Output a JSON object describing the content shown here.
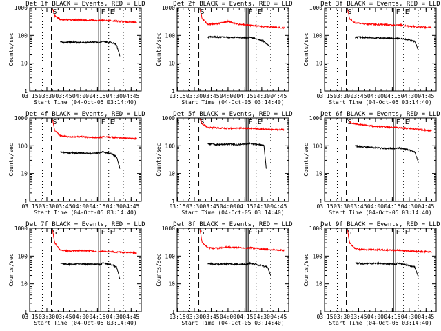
{
  "figure": {
    "xlabel": "Start Time (04-Oct-05 03:14:40)",
    "ylabel": "Counts/sec",
    "x_ticks": [
      "03:15",
      "03:30",
      "03:45",
      "04:00",
      "04:15",
      "04:30",
      "04:45"
    ],
    "y_ticks": [
      "1",
      "10",
      "100",
      "1000"
    ],
    "marker_labels": [
      "S",
      "F",
      "E"
    ]
  },
  "chart_data": [
    {
      "type": "line",
      "title": "Det 1f BLACK = Events, RED = LLD",
      "xlabel": "Start Time (04-Oct-05 03:14:40)",
      "ylabel": "Counts/sec",
      "y_scale": "log",
      "ylim": [
        1,
        1000
      ],
      "xlim": [
        "03:14:40",
        "04:54:00"
      ],
      "x_ticks": [
        "03:15",
        "03:30",
        "03:45",
        "04:00",
        "04:15",
        "04:30",
        "04:45"
      ],
      "vertical_markers": [
        {
          "style": "dotted",
          "time": "03:26"
        },
        {
          "style": "dashed",
          "time": "03:34",
          "label": "S"
        },
        {
          "style": "solid-double",
          "time": "04:17",
          "label": "F"
        },
        {
          "style": "dotted",
          "time": "04:25",
          "label": "E"
        },
        {
          "style": "dotted",
          "time": "04:38"
        }
      ],
      "series": [
        {
          "color": "#ff0000",
          "time": [
            "03:35",
            "03:37",
            "03:42",
            "03:50",
            "04:00",
            "04:10",
            "04:17",
            "04:20",
            "04:30",
            "04:40",
            "04:50"
          ],
          "values": [
            900,
            500,
            370,
            360,
            355,
            350,
            345,
            350,
            330,
            310,
            300
          ]
        },
        {
          "color": "#000000",
          "time": [
            "03:42",
            "03:45",
            "03:50",
            "04:00",
            "04:10",
            "04:17",
            "04:20",
            "04:28",
            "04:32",
            "04:35"
          ],
          "values": [
            60,
            55,
            58,
            55,
            57,
            55,
            60,
            55,
            45,
            18
          ]
        }
      ]
    },
    {
      "type": "line",
      "title": "Det 2f BLACK = Events, RED = LLD",
      "xlabel": "Start Time (04-Oct-05 03:14:40)",
      "ylabel": "Counts/sec",
      "y_scale": "log",
      "ylim": [
        1,
        1000
      ],
      "xlim": [
        "03:14:40",
        "04:54:00"
      ],
      "x_ticks": [
        "03:15",
        "03:30",
        "03:45",
        "04:00",
        "04:15",
        "04:30",
        "04:45"
      ],
      "vertical_markers": [
        {
          "style": "dotted",
          "time": "03:26"
        },
        {
          "style": "dashed",
          "time": "03:34",
          "label": "S"
        },
        {
          "style": "solid-double",
          "time": "04:17",
          "label": "F"
        },
        {
          "style": "dotted",
          "time": "04:25",
          "label": "E"
        },
        {
          "style": "dotted",
          "time": "04:38"
        }
      ],
      "series": [
        {
          "color": "#ff0000",
          "time": [
            "03:35",
            "03:37",
            "03:42",
            "03:50",
            "04:00",
            "04:05",
            "04:10",
            "04:17",
            "04:20",
            "04:30",
            "04:40",
            "04:50"
          ],
          "values": [
            900,
            400,
            250,
            260,
            320,
            280,
            250,
            240,
            230,
            210,
            200,
            190
          ]
        },
        {
          "color": "#000000",
          "time": [
            "03:42",
            "03:45",
            "03:50",
            "04:00",
            "04:10",
            "04:17",
            "04:20",
            "04:28",
            "04:32",
            "04:37"
          ],
          "values": [
            85,
            90,
            88,
            85,
            86,
            80,
            85,
            70,
            60,
            40
          ]
        }
      ]
    },
    {
      "type": "line",
      "title": "Det 3f BLACK = Events, RED = LLD",
      "xlabel": "Start Time (04-Oct-05 03:14:40)",
      "ylabel": "Counts/sec",
      "y_scale": "log",
      "ylim": [
        1,
        1000
      ],
      "xlim": [
        "03:14:40",
        "04:54:00"
      ],
      "x_ticks": [
        "03:15",
        "03:30",
        "03:45",
        "04:00",
        "04:15",
        "04:30",
        "04:45"
      ],
      "vertical_markers": [
        {
          "style": "dotted",
          "time": "03:26"
        },
        {
          "style": "dashed",
          "time": "03:34",
          "label": "S"
        },
        {
          "style": "solid-double",
          "time": "04:17",
          "label": "F"
        },
        {
          "style": "dotted",
          "time": "04:25",
          "label": "E"
        },
        {
          "style": "dotted",
          "time": "04:38"
        }
      ],
      "series": [
        {
          "color": "#ff0000",
          "time": [
            "03:35",
            "03:37",
            "03:42",
            "03:50",
            "04:00",
            "04:10",
            "04:17",
            "04:20",
            "04:30",
            "04:40",
            "04:50"
          ],
          "values": [
            900,
            400,
            280,
            260,
            250,
            240,
            230,
            240,
            215,
            200,
            190
          ]
        },
        {
          "color": "#000000",
          "time": [
            "03:42",
            "03:45",
            "03:50",
            "04:00",
            "04:10",
            "04:17",
            "04:20",
            "04:30",
            "04:35",
            "04:38"
          ],
          "values": [
            85,
            88,
            85,
            82,
            80,
            78,
            80,
            70,
            60,
            30
          ]
        }
      ]
    },
    {
      "type": "line",
      "title": "Det 4f BLACK = Events, RED = LLD",
      "xlabel": "Start Time (04-Oct-05 03:14:40)",
      "ylabel": "Counts/sec",
      "y_scale": "log",
      "ylim": [
        1,
        1000
      ],
      "xlim": [
        "03:14:40",
        "04:54:00"
      ],
      "x_ticks": [
        "03:15",
        "03:30",
        "03:45",
        "04:00",
        "04:15",
        "04:30",
        "04:45"
      ],
      "vertical_markers": [
        {
          "style": "dotted",
          "time": "03:26"
        },
        {
          "style": "dashed",
          "time": "03:34",
          "label": "S"
        },
        {
          "style": "solid-double",
          "time": "04:17",
          "label": "F"
        },
        {
          "style": "dotted",
          "time": "04:25",
          "label": "E"
        },
        {
          "style": "dotted",
          "time": "04:38"
        }
      ],
      "series": [
        {
          "color": "#ff0000",
          "time": [
            "03:35",
            "03:37",
            "03:42",
            "03:50",
            "04:00",
            "04:10",
            "04:17",
            "04:20",
            "04:30",
            "04:40",
            "04:50"
          ],
          "values": [
            900,
            350,
            230,
            210,
            210,
            200,
            200,
            210,
            200,
            190,
            180
          ]
        },
        {
          "color": "#000000",
          "time": [
            "03:42",
            "03:45",
            "03:50",
            "04:00",
            "04:10",
            "04:17",
            "04:20",
            "04:28",
            "04:32",
            "04:35"
          ],
          "values": [
            60,
            58,
            55,
            55,
            52,
            55,
            60,
            50,
            40,
            15
          ]
        }
      ]
    },
    {
      "type": "line",
      "title": "Det 5f BLACK = Events, RED = LLD",
      "xlabel": "Start Time (04-Oct-05 03:14:40)",
      "ylabel": "Counts/sec",
      "y_scale": "log",
      "ylim": [
        1,
        1000
      ],
      "xlim": [
        "03:14:40",
        "04:54:00"
      ],
      "x_ticks": [
        "03:15",
        "03:30",
        "03:45",
        "04:00",
        "04:15",
        "04:30",
        "04:45"
      ],
      "vertical_markers": [
        {
          "style": "dotted",
          "time": "03:26"
        },
        {
          "style": "dashed",
          "time": "03:34",
          "label": "S"
        },
        {
          "style": "solid-double",
          "time": "04:17",
          "label": "F"
        },
        {
          "style": "dotted",
          "time": "04:25",
          "label": "E"
        },
        {
          "style": "dotted",
          "time": "04:38"
        }
      ],
      "series": [
        {
          "color": "#ff0000",
          "time": [
            "03:35",
            "03:37",
            "03:42",
            "03:50",
            "04:00",
            "04:10",
            "04:17",
            "04:20",
            "04:30",
            "04:40",
            "04:50"
          ],
          "values": [
            900,
            600,
            460,
            440,
            420,
            430,
            420,
            420,
            400,
            380,
            380
          ]
        },
        {
          "color": "#000000",
          "time": [
            "03:42",
            "03:45",
            "03:50",
            "04:00",
            "04:10",
            "04:17",
            "04:20",
            "04:28",
            "04:32",
            "04:34"
          ],
          "values": [
            120,
            115,
            110,
            115,
            110,
            115,
            120,
            110,
            100,
            15
          ]
        }
      ]
    },
    {
      "type": "line",
      "title": "Det 6f BLACK = Events, RED = LLD",
      "xlabel": "Start Time (04-Oct-05 03:14:40)",
      "ylabel": "Counts/sec",
      "y_scale": "log",
      "ylim": [
        1,
        1000
      ],
      "xlim": [
        "03:14:40",
        "04:54:00"
      ],
      "x_ticks": [
        "03:15",
        "03:30",
        "03:45",
        "04:00",
        "04:15",
        "04:30",
        "04:45"
      ],
      "vertical_markers": [
        {
          "style": "dotted",
          "time": "03:26"
        },
        {
          "style": "dashed",
          "time": "03:34",
          "label": "S"
        },
        {
          "style": "solid-double",
          "time": "04:17",
          "label": "F"
        },
        {
          "style": "dotted",
          "time": "04:25",
          "label": "E"
        },
        {
          "style": "dotted",
          "time": "04:38"
        }
      ],
      "series": [
        {
          "color": "#ff0000",
          "time": [
            "03:37",
            "03:42",
            "03:50",
            "04:00",
            "04:10",
            "04:17",
            "04:20",
            "04:30",
            "04:40",
            "04:50"
          ],
          "values": [
            700,
            600,
            550,
            500,
            480,
            450,
            450,
            420,
            380,
            350
          ]
        },
        {
          "color": "#000000",
          "time": [
            "03:42",
            "03:45",
            "03:50",
            "04:00",
            "04:10",
            "04:17",
            "04:20",
            "04:30",
            "04:35",
            "04:38"
          ],
          "values": [
            100,
            95,
            90,
            85,
            80,
            80,
            85,
            70,
            60,
            25
          ]
        }
      ]
    },
    {
      "type": "line",
      "title": "Det 7f BLACK = Events, RED = LLD",
      "xlabel": "Start Time (04-Oct-05 03:14:40)",
      "ylabel": "Counts/sec",
      "y_scale": "log",
      "ylim": [
        1,
        1000
      ],
      "xlim": [
        "03:14:40",
        "04:54:00"
      ],
      "x_ticks": [
        "03:15",
        "03:30",
        "03:45",
        "04:00",
        "04:15",
        "04:30",
        "04:45"
      ],
      "vertical_markers": [
        {
          "style": "dotted",
          "time": "03:26"
        },
        {
          "style": "dashed",
          "time": "03:34",
          "label": "S"
        },
        {
          "style": "solid-double",
          "time": "04:17",
          "label": "F"
        },
        {
          "style": "dotted",
          "time": "04:25",
          "label": "E"
        },
        {
          "style": "dotted",
          "time": "04:38"
        }
      ],
      "series": [
        {
          "color": "#ff0000",
          "time": [
            "03:35",
            "03:37",
            "03:42",
            "03:50",
            "04:00",
            "04:10",
            "04:17",
            "04:20",
            "04:30",
            "04:40",
            "04:50"
          ],
          "values": [
            900,
            300,
            160,
            150,
            160,
            150,
            145,
            150,
            140,
            135,
            130
          ]
        },
        {
          "color": "#000000",
          "time": [
            "03:42",
            "03:45",
            "03:50",
            "04:00",
            "04:10",
            "04:17",
            "04:20",
            "04:28",
            "04:32",
            "04:35"
          ],
          "values": [
            55,
            52,
            50,
            52,
            50,
            50,
            55,
            48,
            40,
            15
          ]
        }
      ]
    },
    {
      "type": "line",
      "title": "Det 8f BLACK = Events, RED = LLD",
      "xlabel": "Start Time (04-Oct-05 03:14:40)",
      "ylabel": "Counts/sec",
      "y_scale": "log",
      "ylim": [
        1,
        1000
      ],
      "xlim": [
        "03:14:40",
        "04:54:00"
      ],
      "x_ticks": [
        "03:15",
        "03:30",
        "03:45",
        "04:00",
        "04:15",
        "04:30",
        "04:45"
      ],
      "vertical_markers": [
        {
          "style": "dotted",
          "time": "03:26"
        },
        {
          "style": "dashed",
          "time": "03:34",
          "label": "S"
        },
        {
          "style": "solid-double",
          "time": "04:17",
          "label": "F"
        },
        {
          "style": "dotted",
          "time": "04:25",
          "label": "E"
        },
        {
          "style": "dotted",
          "time": "04:38"
        }
      ],
      "series": [
        {
          "color": "#ff0000",
          "time": [
            "03:35",
            "03:37",
            "03:42",
            "03:50",
            "04:00",
            "04:10",
            "04:17",
            "04:20",
            "04:30",
            "04:40",
            "04:50"
          ],
          "values": [
            900,
            300,
            200,
            190,
            210,
            200,
            190,
            200,
            180,
            170,
            160
          ]
        },
        {
          "color": "#000000",
          "time": [
            "03:42",
            "03:45",
            "03:50",
            "04:00",
            "04:10",
            "04:17",
            "04:20",
            "04:30",
            "04:35",
            "04:38"
          ],
          "values": [
            55,
            52,
            50,
            52,
            50,
            50,
            55,
            45,
            40,
            20
          ]
        }
      ]
    },
    {
      "type": "line",
      "title": "Det 9f BLACK = Events, RED = LLD",
      "xlabel": "Start Time (04-Oct-05 03:14:40)",
      "ylabel": "Counts/sec",
      "y_scale": "log",
      "ylim": [
        1,
        1000
      ],
      "xlim": [
        "03:14:40",
        "04:54:00"
      ],
      "x_ticks": [
        "03:15",
        "03:30",
        "03:45",
        "04:00",
        "04:15",
        "04:30",
        "04:45"
      ],
      "vertical_markers": [
        {
          "style": "dotted",
          "time": "03:26"
        },
        {
          "style": "dashed",
          "time": "03:34",
          "label": "S"
        },
        {
          "style": "solid-double",
          "time": "04:17",
          "label": "F"
        },
        {
          "style": "dotted",
          "time": "04:25",
          "label": "E"
        },
        {
          "style": "dotted",
          "time": "04:38"
        }
      ],
      "series": [
        {
          "color": "#ff0000",
          "time": [
            "03:35",
            "03:37",
            "03:42",
            "03:50",
            "04:00",
            "04:10",
            "04:17",
            "04:20",
            "04:30",
            "04:40",
            "04:50"
          ],
          "values": [
            900,
            300,
            180,
            170,
            170,
            165,
            160,
            165,
            150,
            145,
            140
          ]
        },
        {
          "color": "#000000",
          "time": [
            "03:42",
            "03:45",
            "03:50",
            "04:00",
            "04:10",
            "04:17",
            "04:20",
            "04:30",
            "04:35",
            "04:38"
          ],
          "values": [
            55,
            55,
            52,
            55,
            52,
            50,
            55,
            45,
            40,
            18
          ]
        }
      ]
    }
  ]
}
